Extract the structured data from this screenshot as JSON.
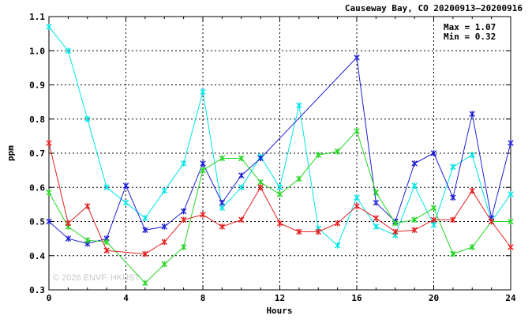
{
  "chart_data": {
    "type": "line",
    "title": "Causeway Bay, CO 20200913–20200916",
    "xlabel": "Hours",
    "ylabel": "ppm",
    "xlim": [
      0,
      24
    ],
    "ylim": [
      0.3,
      1.1
    ],
    "x_ticks": [
      0,
      4,
      8,
      12,
      16,
      20,
      24
    ],
    "y_ticks": [
      0.3,
      0.4,
      0.5,
      0.6,
      0.7,
      0.8,
      0.9,
      1.0,
      1.1
    ],
    "y_tick_labels": [
      "0.3",
      "0.4",
      "0.5",
      "0.6",
      "0.7",
      "0.8",
      "0.9",
      "1.0",
      "1.1"
    ],
    "grid": true,
    "stats": {
      "max": "Max = 1.07",
      "min": "Min = 0.32"
    },
    "watermark": "© 2026  ENVF, HKUST",
    "series": [
      {
        "color": "#00e5e5",
        "x": [
          0,
          1,
          2,
          3,
          4,
          5,
          6,
          7,
          8,
          9,
          10,
          11,
          12,
          13,
          14,
          15,
          16,
          17,
          18,
          19,
          20,
          21,
          22,
          23,
          24
        ],
        "values": [
          1.07,
          1.0,
          0.8,
          0.6,
          0.555,
          0.51,
          0.59,
          0.67,
          0.88,
          0.54,
          0.6,
          0.69,
          0.6,
          0.84,
          0.48,
          0.43,
          0.57,
          0.485,
          0.46,
          0.605,
          0.49,
          0.66,
          0.695,
          0.5,
          0.58
        ]
      },
      {
        "color": "#1f1fd6",
        "x": [
          0,
          1,
          2,
          3,
          4,
          5,
          6,
          7,
          8,
          9,
          10,
          11,
          16,
          17,
          18,
          19,
          20,
          21,
          22,
          23,
          24
        ],
        "values": [
          0.5,
          0.45,
          0.435,
          0.45,
          0.605,
          0.475,
          0.485,
          0.53,
          0.67,
          0.555,
          0.635,
          0.685,
          0.98,
          0.555,
          0.5,
          0.67,
          0.7,
          0.57,
          0.815,
          0.51,
          0.73
        ]
      },
      {
        "color": "#22d622",
        "x": [
          0,
          1,
          2,
          3,
          5,
          6,
          7,
          8,
          9,
          10,
          11,
          12,
          13,
          14,
          15,
          16,
          17,
          18,
          19,
          20,
          21,
          22,
          23,
          24
        ],
        "values": [
          0.585,
          0.485,
          0.445,
          0.44,
          0.32,
          0.375,
          0.425,
          0.65,
          0.685,
          0.685,
          0.615,
          0.58,
          0.625,
          0.695,
          0.705,
          0.765,
          0.585,
          0.495,
          0.505,
          0.54,
          0.405,
          0.425,
          0.5,
          0.5
        ]
      },
      {
        "color": "#e52020",
        "x": [
          0,
          1,
          2,
          3,
          5,
          6,
          7,
          8,
          9,
          10,
          11,
          12,
          13,
          14,
          15,
          16,
          17,
          18,
          19,
          20,
          21,
          22,
          23,
          24
        ],
        "values": [
          0.73,
          0.495,
          0.545,
          0.415,
          0.405,
          0.44,
          0.505,
          0.52,
          0.485,
          0.505,
          0.6,
          0.495,
          0.47,
          0.47,
          0.495,
          0.545,
          0.51,
          0.47,
          0.475,
          0.505,
          0.505,
          0.59,
          0.5,
          0.425
        ]
      }
    ]
  }
}
